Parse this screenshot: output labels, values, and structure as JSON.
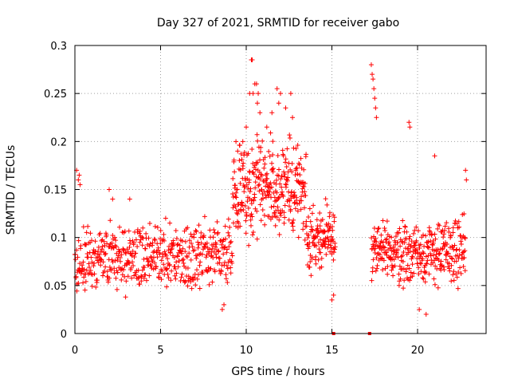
{
  "chart_data": {
    "type": "scatter",
    "title": "Day 327 of 2021, SRMTID for receiver gabo",
    "xlabel": "GPS time / hours",
    "ylabel": "SRMTID / TECUs",
    "xlim": [
      0,
      24
    ],
    "ylim": [
      0,
      0.3
    ],
    "xticks": [
      0,
      5,
      10,
      15,
      20
    ],
    "xtick_labels": [
      "0",
      "5",
      "10",
      "15",
      "20"
    ],
    "yticks": [
      0,
      0.05,
      0.1,
      0.15,
      0.2,
      0.25,
      0.3
    ],
    "ytick_labels": [
      "0",
      "0.05",
      "0.1",
      "0.15",
      "0.2",
      "0.25",
      "0.3"
    ],
    "grid": true,
    "marker": "plus",
    "color": "#ff0000",
    "series": [
      {
        "name": "SRMTID",
        "description_segments": [
          {
            "x_range": [
              0.0,
              9.2
            ],
            "y_mean": 0.08,
            "y_spread": 0.03,
            "count": 520
          },
          {
            "x_range": [
              9.2,
              13.5
            ],
            "y_mean": 0.15,
            "y_spread": 0.045,
            "count": 320
          },
          {
            "x_range": [
              13.5,
              15.2
            ],
            "y_mean": 0.1,
            "y_spread": 0.03,
            "count": 120
          },
          {
            "x_range": [
              17.3,
              22.8
            ],
            "y_mean": 0.085,
            "y_spread": 0.03,
            "count": 360
          }
        ],
        "x": [
          0.1,
          0.2,
          0.25,
          0.3,
          2.0,
          2.2,
          3.2,
          8.6,
          8.7,
          9.4,
          9.5,
          9.8,
          10.0,
          10.2,
          10.3,
          10.35,
          10.4,
          10.5,
          10.6,
          10.65,
          10.7,
          10.8,
          11.2,
          11.5,
          11.8,
          11.9,
          12.0,
          12.3,
          12.6,
          12.7,
          15.0,
          15.1,
          17.3,
          17.35,
          17.4,
          17.45,
          17.5,
          17.55,
          17.6,
          19.5,
          19.55,
          20.1,
          20.5,
          21.0,
          22.8,
          22.85
        ],
        "y": [
          0.17,
          0.16,
          0.165,
          0.155,
          0.15,
          0.14,
          0.14,
          0.025,
          0.03,
          0.2,
          0.19,
          0.2,
          0.215,
          0.25,
          0.285,
          0.285,
          0.25,
          0.26,
          0.26,
          0.24,
          0.25,
          0.23,
          0.215,
          0.23,
          0.255,
          0.24,
          0.25,
          0.235,
          0.25,
          0.225,
          0.035,
          0.04,
          0.28,
          0.27,
          0.265,
          0.255,
          0.245,
          0.235,
          0.225,
          0.22,
          0.215,
          0.025,
          0.02,
          0.185,
          0.17,
          0.16
        ]
      }
    ],
    "zero_markers_x": [
      15.1,
      17.2
    ]
  }
}
